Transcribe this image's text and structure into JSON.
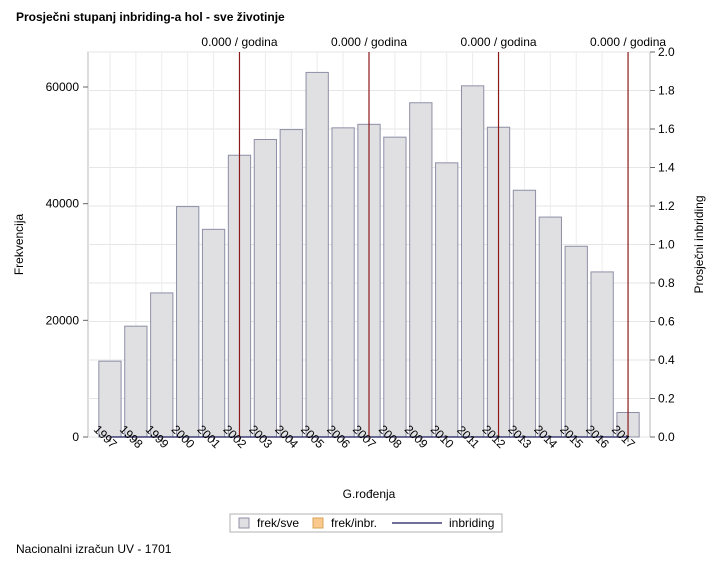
{
  "title": "Prosječni stupanj inbriding-a hol - sve životinje",
  "footnote": "Nacionalni izračun UV - 1701",
  "chart_data": {
    "type": "bar",
    "categories": [
      "1997",
      "1998",
      "1999",
      "2000",
      "2001",
      "2002",
      "2003",
      "2004",
      "2005",
      "2006",
      "2007",
      "2008",
      "2009",
      "2010",
      "2011",
      "2012",
      "2013",
      "2014",
      "2015",
      "2016",
      "2017"
    ],
    "series": [
      {
        "name": "frek/sve",
        "type": "bar",
        "axis": "left",
        "color": "#e0e0e3",
        "values": [
          13000,
          19000,
          24700,
          39500,
          35600,
          48300,
          51000,
          52700,
          62500,
          53000,
          53600,
          51400,
          57300,
          47000,
          60200,
          53100,
          42300,
          37700,
          32700,
          28300,
          4200
        ]
      },
      {
        "name": "frek/inbr.",
        "type": "bar",
        "axis": "left",
        "color": "#f9c98d",
        "values": [
          0,
          0,
          0,
          0,
          0,
          0,
          0,
          0,
          0,
          0,
          0,
          0,
          0,
          0,
          0,
          0,
          0,
          0,
          0,
          0,
          0
        ]
      },
      {
        "name": "inbriding",
        "type": "line",
        "axis": "right",
        "color": "#1a1a5e",
        "values": [
          0,
          0,
          0,
          0,
          0,
          0,
          0,
          0,
          0,
          0,
          0,
          0,
          0,
          0,
          0,
          0,
          0,
          0,
          0,
          0,
          0
        ]
      }
    ],
    "xlabel": "G.rođenja",
    "ylabel": "Frekvencija",
    "y2label": "Prosječni inbriding",
    "ylim": [
      0,
      66000
    ],
    "y2lim": [
      0,
      2.0
    ],
    "yticks": [
      "0",
      "20000",
      "40000",
      "60000"
    ],
    "y2ticks": [
      "0.0",
      "0.2",
      "0.4",
      "0.6",
      "0.8",
      "1.0",
      "1.2",
      "1.4",
      "1.6",
      "1.8",
      "2.0"
    ],
    "reference_lines": [
      {
        "x": "2002",
        "label": "0.000 / godina",
        "color": "#8b1a1a"
      },
      {
        "x": "2007",
        "label": "0.000 / godina",
        "color": "#8b1a1a"
      },
      {
        "x": "2012",
        "label": "0.000 / godina",
        "color": "#8b1a1a"
      },
      {
        "x": "2017",
        "label": "0.000 / godina",
        "color": "#8b1a1a"
      }
    ],
    "grid": true,
    "legend_position": "bottom"
  }
}
